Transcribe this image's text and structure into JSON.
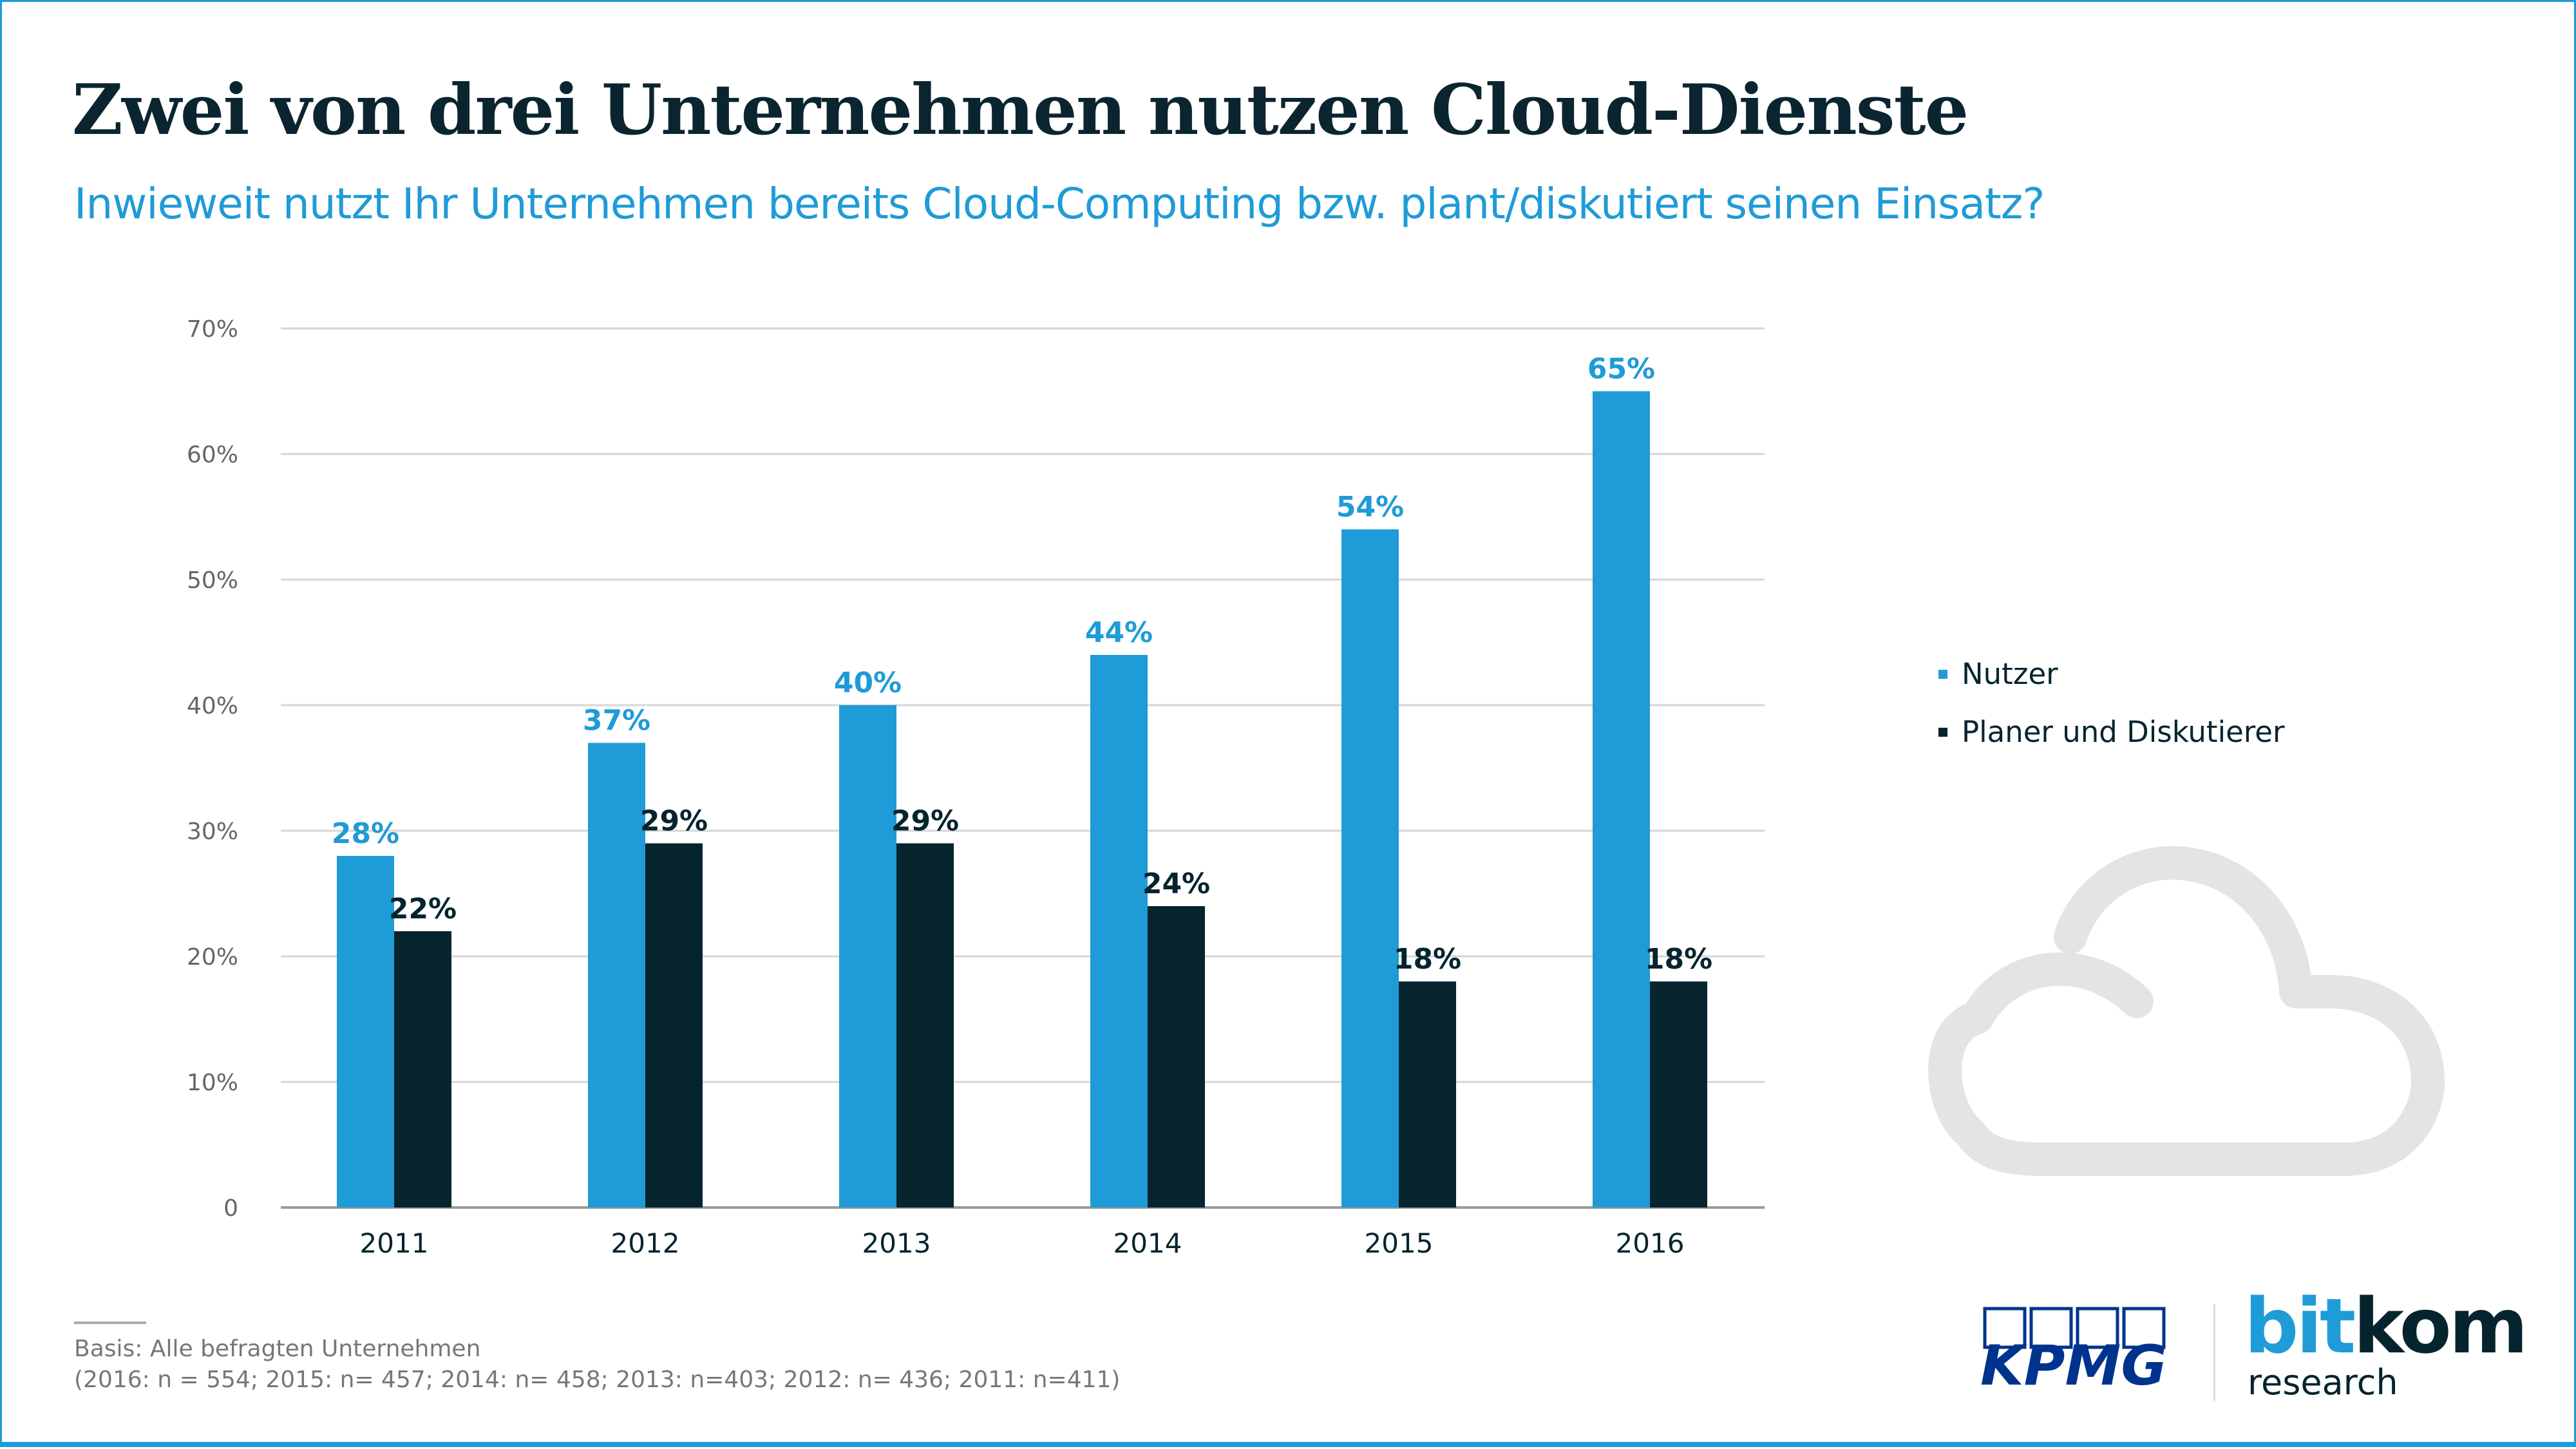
{
  "header": {
    "title": "Zwei von drei Unternehmen nutzen Cloud-Dienste",
    "subtitle": "Inwieweit nutzt Ihr Unternehmen bereits Cloud-Computing bzw. plant/diskutiert seinen Einsatz?"
  },
  "chart_data": {
    "type": "bar",
    "categories": [
      "2011",
      "2012",
      "2013",
      "2014",
      "2015",
      "2016"
    ],
    "series": [
      {
        "name": "Nutzer",
        "values": [
          28,
          37,
          40,
          44,
          54,
          65
        ],
        "color": "#1f9bd7"
      },
      {
        "name": "Planer und Diskutierer",
        "values": [
          22,
          29,
          29,
          24,
          18,
          18
        ],
        "color": "#05242e"
      }
    ],
    "ylim": [
      0,
      70
    ],
    "yticks": [
      "0",
      "10%",
      "20%",
      "30%",
      "40%",
      "50%",
      "60%",
      "70%"
    ],
    "grid": true,
    "legend": "right",
    "data_labels_suffix": "%"
  },
  "footer": {
    "basis": "Basis: Alle befragten Unternehmen",
    "sample": "(2016: n = 554; 2015: n= 457; 2014: n= 458; 2013: n=403; 2012: n= 436; 2011: n=411)"
  },
  "logos": {
    "kpmg": "KPMG",
    "bitkom_bit": "bit",
    "bitkom_kom": "kom",
    "bitkom_research": "research"
  },
  "icons": {
    "decoration": "cloud-icon"
  }
}
